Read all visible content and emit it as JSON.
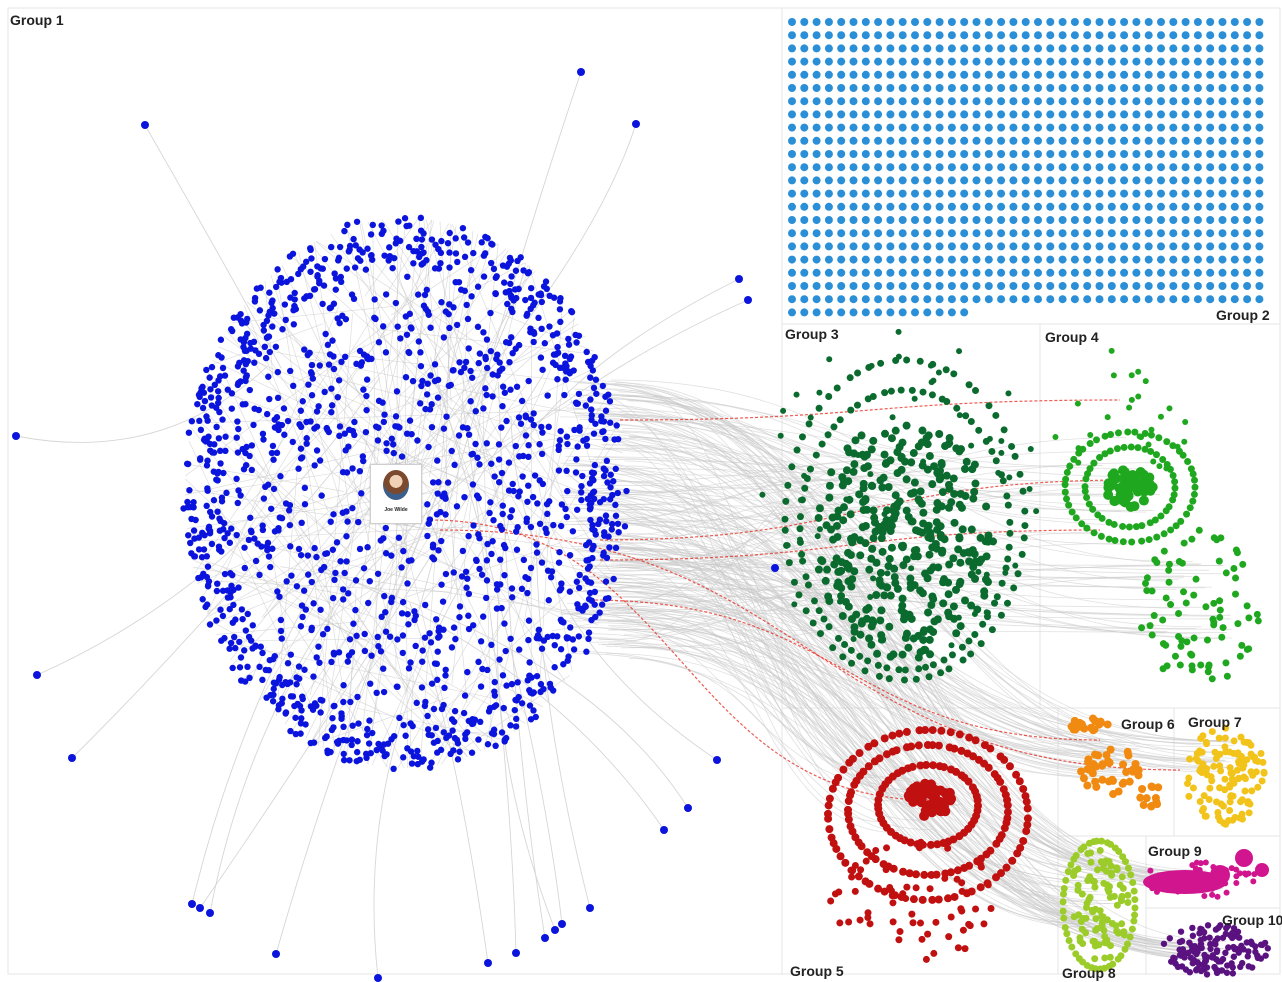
{
  "graph": {
    "groups": [
      {
        "label": "Group 1",
        "color": "#0a14dc"
      },
      {
        "label": "Group 2",
        "color": "#2a8fd6"
      },
      {
        "label": "Group 3",
        "color": "#0b6b2e"
      },
      {
        "label": "Group 4",
        "color": "#1fa81f"
      },
      {
        "label": "Group 5",
        "color": "#c01010"
      },
      {
        "label": "Group 6",
        "color": "#f08a10"
      },
      {
        "label": "Group 7",
        "color": "#f2c31a"
      },
      {
        "label": "Group 8",
        "color": "#9ccc2a"
      },
      {
        "label": "Group 9",
        "color": "#d0158e"
      },
      {
        "label": "Group 10",
        "color": "#5a1280"
      }
    ],
    "edge_color": "#c9c9c9",
    "highlight_edge_color": "#e8241a",
    "central_profile": {
      "name": "Joe Wilde"
    }
  }
}
